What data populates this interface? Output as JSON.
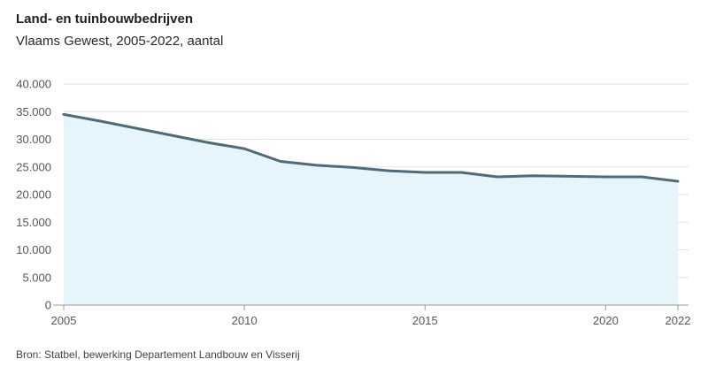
{
  "chart_data": {
    "type": "area",
    "title": "Land- en tuinbouwbedrijven",
    "subtitle": "Vlaams Gewest, 2005-2022, aantal",
    "source": "Bron: Statbel, bewerking Departement Landbouw en Visserij",
    "xlabel": "",
    "ylabel": "",
    "x": [
      2005,
      2006,
      2007,
      2008,
      2009,
      2010,
      2011,
      2012,
      2013,
      2014,
      2015,
      2016,
      2017,
      2018,
      2019,
      2020,
      2021,
      2022
    ],
    "series": [
      {
        "name": "Land- en tuinbouwbedrijven",
        "values": [
          34500,
          33300,
          32000,
          30700,
          29400,
          28300,
          26000,
          25300,
          24900,
          24300,
          24000,
          24000,
          23200,
          23400,
          23300,
          23200,
          23200,
          22400
        ]
      }
    ],
    "ylim": [
      0,
      40000
    ],
    "xlim": [
      2005,
      2022
    ],
    "y_ticks": [
      0,
      5000,
      10000,
      15000,
      20000,
      25000,
      30000,
      35000,
      40000
    ],
    "y_tick_labels": [
      "0",
      "5.000",
      "10.000",
      "15.000",
      "20.000",
      "25.000",
      "30.000",
      "35.000",
      "40.000"
    ],
    "x_ticks": [
      2005,
      2010,
      2015,
      2020,
      2022
    ],
    "x_tick_labels": [
      "2005",
      "2010",
      "2015",
      "2020",
      "2022"
    ],
    "grid": true,
    "legend": "none",
    "line_color": "#4f6b7a",
    "fill_color": "#e6f4fb",
    "grid_color": "#e2e2e2",
    "axis_color": "#9a9a9a"
  }
}
